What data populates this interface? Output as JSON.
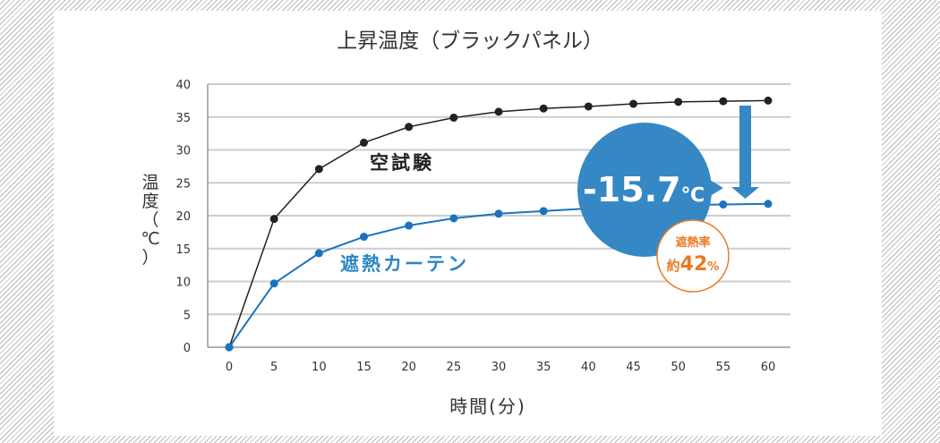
{
  "chart_data": {
    "type": "line",
    "title": "上昇温度（ブラックパネル）",
    "ylabel_chars": [
      "温",
      "度",
      "（",
      "℃",
      "）"
    ],
    "xlabel": "時間(分)",
    "x": [
      0,
      5,
      10,
      15,
      20,
      25,
      30,
      35,
      40,
      45,
      50,
      55,
      60
    ],
    "ylim": [
      0,
      40
    ],
    "yticks": [
      0,
      5,
      10,
      15,
      20,
      25,
      30,
      35,
      40
    ],
    "grid": true,
    "series": [
      {
        "name": "空試験",
        "color": "#222222",
        "values": [
          0,
          19.5,
          27.1,
          31.1,
          33.5,
          34.9,
          35.8,
          36.3,
          36.6,
          37.0,
          37.3,
          37.4,
          37.5
        ]
      },
      {
        "name": "遮熱カーテン",
        "color": "#1a73c0",
        "values": [
          0,
          9.7,
          14.3,
          16.8,
          18.5,
          19.6,
          20.3,
          20.7,
          21.1,
          21.4,
          21.6,
          21.7,
          21.8
        ]
      }
    ],
    "annotations": {
      "difference": "-15.7",
      "difference_unit": "℃",
      "rate_label": "遮熱率",
      "rate_prefix": "約",
      "rate_value": "42",
      "rate_unit": "%"
    }
  },
  "colors": {
    "grid": "#cccccc",
    "bubble": "#3588c4",
    "arrow": "#3588c4",
    "rate": "#ea7a23",
    "title": "#333333"
  }
}
